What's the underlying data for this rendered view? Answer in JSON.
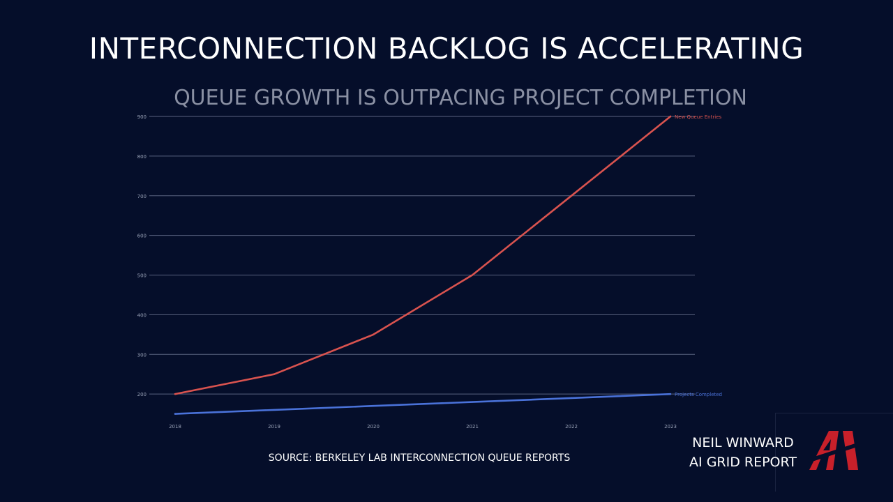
{
  "page": {
    "title": "INTERCONNECTION BACKLOG IS ACCELERATING",
    "source": "SOURCE: BERKELEY LAB INTERCONNECTION QUEUE REPORTS",
    "author_line1": "NEIL WINWARD",
    "author_line2": "AI GRID REPORT",
    "logo_text": "AI"
  },
  "colors": {
    "background": "#050e2a",
    "grid": "#5a6380",
    "tick": "#9aa3b8",
    "subtitle": "#8a90a3",
    "new_entries": "#d9534f",
    "completed": "#4a72d9",
    "logo": "#c8202a"
  },
  "chart_data": {
    "type": "line",
    "title": "QUEUE GROWTH IS OUTPACING PROJECT COMPLETION",
    "xlabel": "",
    "ylabel": "",
    "x": [
      2018,
      2019,
      2020,
      2021,
      2022,
      2023
    ],
    "xticks": [
      "2018",
      "2019",
      "2020",
      "2021",
      "2022",
      "2023"
    ],
    "yticks": [
      "200",
      "300",
      "400",
      "500",
      "600",
      "700",
      "800",
      "900"
    ],
    "ylim": [
      130,
      900
    ],
    "grid": true,
    "legend": "end-of-line labels",
    "series": [
      {
        "name": "New Queue Entries",
        "color": "#d9534f",
        "values": [
          200,
          250,
          350,
          500,
          700,
          900
        ]
      },
      {
        "name": "Projects Completed",
        "color": "#4a72d9",
        "values": [
          150,
          160,
          170,
          180,
          190,
          200
        ]
      }
    ]
  }
}
